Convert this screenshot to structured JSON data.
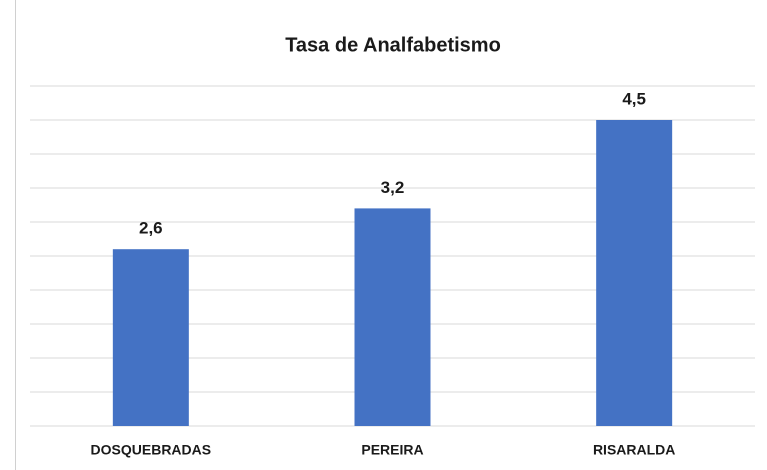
{
  "chart_data": {
    "type": "bar",
    "title": "Tasa de Analfabetismo",
    "categories": [
      "DOSQUEBRADAS",
      "PEREIRA",
      "RISARALDA"
    ],
    "values": [
      2.6,
      3.2,
      4.5
    ],
    "value_labels": [
      "2,6",
      "3,2",
      "4,5"
    ],
    "color": "#4472c4",
    "ylim": [
      0,
      5
    ],
    "yticks": [
      0,
      0.5,
      1,
      1.5,
      2,
      2.5,
      3,
      3.5,
      4,
      4.5,
      5
    ],
    "grid": true
  }
}
